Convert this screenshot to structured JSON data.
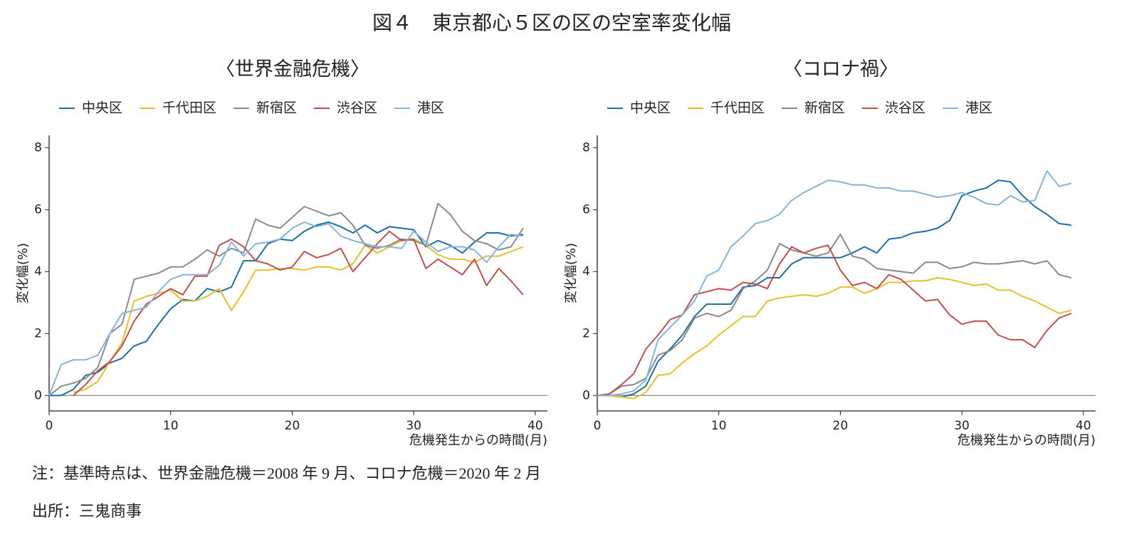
{
  "title": "図４　東京都心５区の区の空室率変化幅",
  "notes": [
    "注：基準時点は、世界金融危機＝2008 年 9 月、コロナ危機＝2020 年 2 月",
    "出所：三鬼商事"
  ],
  "chart_data": [
    {
      "type": "line",
      "title": "〈世界金融危機〉",
      "xlabel": "危機発生からの時間(月)",
      "ylabel": "変化幅(%)",
      "legend": "top-left",
      "hline": 0,
      "xlim": [
        0,
        41
      ],
      "xticks": [
        0,
        10,
        20,
        30,
        40
      ],
      "ylim": [
        -0.5,
        8.4
      ],
      "yticks": [
        0,
        2,
        4,
        6,
        8
      ],
      "x": [
        0,
        1,
        2,
        3,
        4,
        5,
        6,
        7,
        8,
        9,
        10,
        11,
        12,
        13,
        14,
        15,
        16,
        17,
        18,
        19,
        20,
        21,
        22,
        23,
        24,
        25,
        26,
        27,
        28,
        29,
        30,
        31,
        32,
        33,
        34,
        35,
        36,
        37,
        38,
        39
      ],
      "series": [
        {
          "name": "中央区",
          "color": "#1f6fa3",
          "values": [
            0,
            0,
            0.2,
            0.65,
            0.75,
            1.05,
            1.2,
            1.6,
            1.75,
            2.3,
            2.8,
            3.1,
            3.05,
            3.45,
            3.35,
            3.5,
            4.35,
            4.35,
            4.9,
            5.05,
            5.0,
            5.3,
            5.5,
            5.6,
            5.45,
            5.25,
            5.5,
            5.25,
            5.45,
            5.4,
            5.35,
            4.8,
            5.0,
            4.85,
            4.6,
            4.95,
            5.25,
            5.25,
            5.15,
            5.2
          ]
        },
        {
          "name": "千代田区",
          "color": "#e6bf2e",
          "values": [
            null,
            null,
            0.1,
            0.2,
            0.45,
            1.1,
            1.7,
            3.05,
            3.2,
            3.3,
            3.4,
            3.05,
            3.05,
            3.2,
            3.45,
            2.75,
            3.35,
            4.05,
            4.05,
            4.1,
            4.1,
            4.05,
            4.15,
            4.15,
            4.05,
            4.25,
            4.85,
            4.6,
            4.8,
            5.0,
            5.05,
            4.85,
            4.55,
            4.4,
            4.4,
            4.3,
            4.5,
            4.5,
            4.65,
            4.8
          ]
        },
        {
          "name": "新宿区",
          "color": "#8a8a8a",
          "values": [
            0,
            0.3,
            0.4,
            0.55,
            0.9,
            2.0,
            2.3,
            3.75,
            3.85,
            3.95,
            4.15,
            4.15,
            4.4,
            4.7,
            4.5,
            4.75,
            4.6,
            5.7,
            5.5,
            5.4,
            5.75,
            6.1,
            5.95,
            5.8,
            5.9,
            5.5,
            4.85,
            4.75,
            4.85,
            5.05,
            5.0,
            4.85,
            6.2,
            5.85,
            5.3,
            5.0,
            4.9,
            4.7,
            4.8,
            5.4
          ]
        },
        {
          "name": "渋谷区",
          "color": "#c0504d",
          "values": [
            null,
            null,
            0,
            0.35,
            0.8,
            1.1,
            1.6,
            2.4,
            2.95,
            3.2,
            3.45,
            3.25,
            3.85,
            3.85,
            4.85,
            5.05,
            4.8,
            4.35,
            4.25,
            4.05,
            4.15,
            4.65,
            4.45,
            4.55,
            4.75,
            4.0,
            4.45,
            4.9,
            5.3,
            5.0,
            5.05,
            4.1,
            4.4,
            4.15,
            3.9,
            4.4,
            3.55,
            4.1,
            3.7,
            3.25
          ]
        },
        {
          "name": "港区",
          "color": "#86b4d8",
          "values": [
            0,
            1.0,
            1.15,
            1.15,
            1.3,
            2.0,
            2.65,
            2.75,
            2.85,
            3.35,
            3.75,
            3.9,
            3.9,
            3.9,
            4.2,
            4.95,
            4.5,
            4.9,
            4.95,
            5.05,
            5.4,
            5.6,
            5.45,
            5.55,
            5.15,
            5.0,
            4.9,
            4.8,
            4.8,
            4.75,
            5.3,
            4.95,
            4.65,
            4.8,
            4.8,
            4.7,
            4.3,
            4.8,
            5.2,
            5.15
          ]
        }
      ]
    },
    {
      "type": "line",
      "title": "〈コロナ禍〉",
      "xlabel": "危機発生からの時間(月)",
      "ylabel": "変化幅(%)",
      "legend": "top-left",
      "hline": 0,
      "xlim": [
        0,
        41
      ],
      "xticks": [
        0,
        10,
        20,
        30,
        40
      ],
      "ylim": [
        -0.5,
        8.4
      ],
      "yticks": [
        0,
        2,
        4,
        6,
        8
      ],
      "x": [
        0,
        1,
        2,
        3,
        4,
        5,
        6,
        7,
        8,
        9,
        10,
        11,
        12,
        13,
        14,
        15,
        16,
        17,
        18,
        19,
        20,
        21,
        22,
        23,
        24,
        25,
        26,
        27,
        28,
        29,
        30,
        31,
        32,
        33,
        34,
        35,
        36,
        37,
        38,
        39
      ],
      "series": [
        {
          "name": "中央区",
          "color": "#1f6fa3",
          "values": [
            0,
            0,
            -0.05,
            0.05,
            0.3,
            1.1,
            1.5,
            1.95,
            2.55,
            2.95,
            2.95,
            2.95,
            3.5,
            3.55,
            3.8,
            3.8,
            4.25,
            4.45,
            4.45,
            4.45,
            4.45,
            4.6,
            4.8,
            4.6,
            5.05,
            5.1,
            5.25,
            5.3,
            5.4,
            5.65,
            6.45,
            6.6,
            6.7,
            6.95,
            6.9,
            6.45,
            6.1,
            5.85,
            5.55,
            5.5
          ]
        },
        {
          "name": "千代田区",
          "color": "#e6bf2e",
          "values": [
            0,
            0,
            -0.05,
            -0.1,
            0.1,
            0.65,
            0.7,
            1.05,
            1.35,
            1.6,
            1.95,
            2.25,
            2.55,
            2.55,
            3.05,
            3.15,
            3.2,
            3.25,
            3.2,
            3.3,
            3.5,
            3.5,
            3.3,
            3.45,
            3.65,
            3.65,
            3.7,
            3.7,
            3.8,
            3.75,
            3.65,
            3.55,
            3.6,
            3.4,
            3.4,
            3.2,
            3.05,
            2.85,
            2.65,
            2.75
          ]
        },
        {
          "name": "新宿区",
          "color": "#8a8a8a",
          "values": [
            0,
            0.05,
            0.3,
            0.35,
            0.55,
            1.3,
            1.45,
            1.8,
            2.5,
            2.65,
            2.55,
            2.75,
            3.45,
            3.7,
            4.05,
            4.9,
            4.7,
            4.6,
            4.5,
            4.6,
            5.2,
            4.5,
            4.4,
            4.1,
            4.05,
            4.0,
            3.95,
            4.3,
            4.3,
            4.1,
            4.15,
            4.3,
            4.25,
            4.25,
            4.3,
            4.35,
            4.25,
            4.35,
            3.9,
            3.8
          ]
        },
        {
          "name": "渋谷区",
          "color": "#c0504d",
          "values": [
            0,
            0.05,
            0.35,
            0.7,
            1.5,
            1.95,
            2.45,
            2.6,
            3.25,
            3.35,
            3.45,
            3.4,
            3.65,
            3.6,
            3.45,
            4.25,
            4.8,
            4.6,
            4.75,
            4.85,
            4.05,
            3.55,
            3.65,
            3.45,
            3.9,
            3.75,
            3.4,
            3.05,
            3.1,
            2.6,
            2.3,
            2.4,
            2.4,
            1.95,
            1.8,
            1.8,
            1.55,
            2.1,
            2.5,
            2.65
          ]
        },
        {
          "name": "港区",
          "color": "#86b4d8",
          "values": [
            0,
            0,
            0.05,
            0.15,
            0.5,
            1.8,
            2.2,
            2.6,
            3.05,
            3.85,
            4.05,
            4.8,
            5.15,
            5.55,
            5.65,
            5.85,
            6.3,
            6.55,
            6.75,
            6.95,
            6.9,
            6.8,
            6.8,
            6.7,
            6.7,
            6.6,
            6.6,
            6.5,
            6.4,
            6.45,
            6.55,
            6.4,
            6.2,
            6.15,
            6.45,
            6.25,
            6.3,
            7.25,
            6.75,
            6.85
          ]
        }
      ]
    }
  ]
}
